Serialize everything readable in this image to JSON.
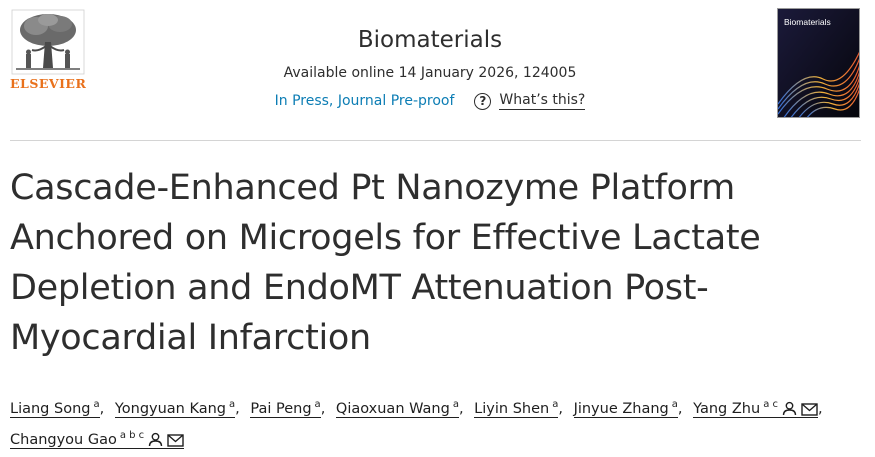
{
  "publisher": {
    "name": "ELSEVIER",
    "accent_color": "#e9711c",
    "logo_icon": "elsevier-tree-icon"
  },
  "journal": {
    "title": "Biomaterials",
    "availability": "Available online 14 January 2026, 124005",
    "status_link": "In Press, Journal Pre-proof",
    "help_label": "What’s this?",
    "help_icon": "question-circle-icon",
    "cover_title": "Biomaterials",
    "link_color": "#0c7db4"
  },
  "article": {
    "title": "Cascade-Enhanced Pt Nanozyme Platform Anchored on Microgels for Effective Lactate Depletion and EndoMT Attenuation Post-Myocardial Infarction"
  },
  "authors": [
    {
      "name": "Liang Song",
      "aff": "a",
      "person_icon": false,
      "mail_icon": false,
      "sep": ","
    },
    {
      "name": "Yongyuan Kang",
      "aff": "a",
      "person_icon": false,
      "mail_icon": false,
      "sep": ","
    },
    {
      "name": "Pai Peng",
      "aff": "a",
      "person_icon": false,
      "mail_icon": false,
      "sep": ","
    },
    {
      "name": "Qiaoxuan Wang",
      "aff": "a",
      "person_icon": false,
      "mail_icon": false,
      "sep": ","
    },
    {
      "name": "Liyin Shen",
      "aff": "a",
      "person_icon": false,
      "mail_icon": false,
      "sep": ","
    },
    {
      "name": "Jinyue Zhang",
      "aff": "a",
      "person_icon": false,
      "mail_icon": false,
      "sep": ","
    },
    {
      "name": "Yang Zhu",
      "aff": "a c",
      "person_icon": true,
      "mail_icon": true,
      "sep": ","
    },
    {
      "name": "Changyou Gao",
      "aff": "a b c",
      "person_icon": true,
      "mail_icon": true,
      "sep": ""
    }
  ]
}
